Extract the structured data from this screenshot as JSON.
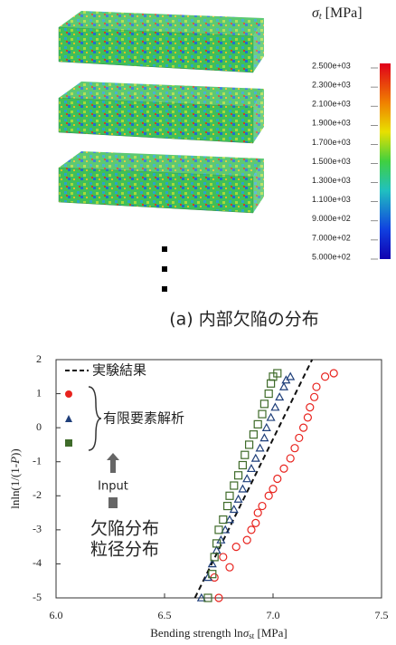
{
  "figure": {
    "legend_title_symbol": "σ",
    "legend_title_sub": "t",
    "legend_title_unit": " [MPa]",
    "legend_labels": [
      "2.500e+03",
      "2.300e+03",
      "2.100e+03",
      "1.900e+03",
      "1.700e+03",
      "1.500e+03",
      "1.300e+03",
      "1.100e+03",
      "9.000e+02",
      "7.000e+02",
      "5.000e+02"
    ],
    "caption": "(a)  内部欠陥の分布"
  },
  "chart_data": {
    "type": "scatter",
    "ylabel_pre": "lnln(1/(1-",
    "ylabel_italic": "P",
    "ylabel_post": "))",
    "xlabel_pre": "Bending strength ln",
    "xlabel_sym": "σ",
    "xlabel_sub": "st",
    "xlabel_post": " [MPa]",
    "xlim": [
      6.0,
      7.5
    ],
    "xticks": [
      {
        "value": 6,
        "label": "6.0"
      },
      6.5,
      {
        "value": 7,
        "label": "7.0"
      },
      7.5
    ],
    "ylim": [
      -5,
      2
    ],
    "yticks": [
      2,
      1,
      0,
      -1,
      -2,
      -3,
      -4,
      -5
    ],
    "fem_label": "有限要素解析",
    "input_label": "Input",
    "input_lines": [
      "欠陥分布",
      "粒径分布"
    ],
    "series": [
      {
        "name": "実験結果",
        "kind": "line",
        "color": "#111111",
        "x": [
          6.64,
          7.18
        ],
        "y": [
          -5,
          2
        ]
      },
      {
        "kind": "circle",
        "color": "#e8231e",
        "x": [
          6.75,
          6.73,
          6.8,
          6.77,
          6.83,
          6.88,
          6.9,
          6.92,
          6.93,
          6.95,
          6.98,
          7.0,
          7.02,
          7.05,
          7.08,
          7.1,
          7.12,
          7.14,
          7.16,
          7.17,
          7.19,
          7.2,
          7.24,
          7.28
        ],
        "y": [
          -5,
          -4.4,
          -4.1,
          -3.8,
          -3.5,
          -3.3,
          -3.0,
          -2.8,
          -2.5,
          -2.3,
          -2.0,
          -1.8,
          -1.5,
          -1.2,
          -0.9,
          -0.6,
          -0.3,
          0,
          0.3,
          0.6,
          0.9,
          1.2,
          1.5,
          1.6
        ]
      },
      {
        "kind": "triangle",
        "color": "#1f3f7a",
        "x": [
          6.67,
          6.7,
          6.72,
          6.74,
          6.76,
          6.78,
          6.8,
          6.82,
          6.84,
          6.86,
          6.88,
          6.9,
          6.92,
          6.94,
          6.96,
          6.97,
          6.99,
          7.01,
          7.03,
          7.05,
          7.06,
          7.08
        ],
        "y": [
          -5,
          -4.4,
          -4.0,
          -3.6,
          -3.3,
          -3.0,
          -2.7,
          -2.4,
          -2.1,
          -1.8,
          -1.5,
          -1.2,
          -0.9,
          -0.6,
          -0.3,
          0,
          0.3,
          0.6,
          0.9,
          1.2,
          1.4,
          1.5
        ]
      },
      {
        "kind": "square",
        "color": "#3f6b2a",
        "x": [
          6.7,
          6.72,
          6.73,
          6.74,
          6.75,
          6.77,
          6.79,
          6.8,
          6.82,
          6.84,
          6.86,
          6.87,
          6.89,
          6.91,
          6.93,
          6.95,
          6.96,
          6.98,
          6.99,
          7.0,
          7.02
        ],
        "y": [
          -5,
          -4.3,
          -3.8,
          -3.4,
          -3.0,
          -2.7,
          -2.3,
          -2.0,
          -1.7,
          -1.4,
          -1.1,
          -0.8,
          -0.5,
          -0.2,
          0.1,
          0.4,
          0.7,
          1.0,
          1.3,
          1.5,
          1.6
        ]
      }
    ]
  }
}
